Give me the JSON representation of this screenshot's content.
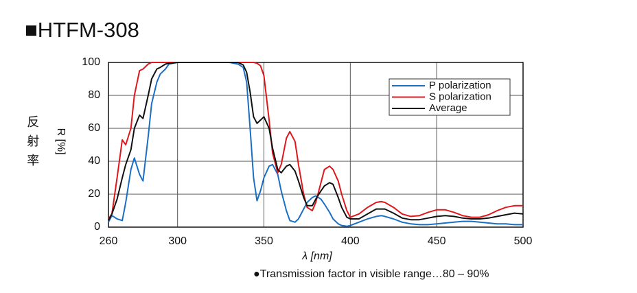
{
  "chart_data": {
    "type": "line",
    "title": "■HTFM-308",
    "ylabel_side": "反射率",
    "ylabel": "R [%]",
    "xlabel": "λ [nm]",
    "annotation": "●Transmission factor in visible range…80 – 90%",
    "x": [
      260,
      262,
      265,
      268,
      270,
      273,
      275,
      278,
      280,
      283,
      285,
      288,
      290,
      293,
      295,
      300,
      310,
      320,
      330,
      335,
      338,
      340,
      342,
      344,
      346,
      348,
      350,
      353,
      355,
      358,
      360,
      363,
      365,
      368,
      370,
      373,
      375,
      378,
      380,
      383,
      385,
      388,
      390,
      393,
      395,
      398,
      400,
      405,
      410,
      415,
      418,
      420,
      425,
      430,
      435,
      440,
      445,
      450,
      455,
      460,
      465,
      470,
      475,
      480,
      485,
      490,
      495,
      500
    ],
    "series": [
      {
        "name": "P polarization",
        "color": "#1a6fc4",
        "values": [
          3,
          7,
          5,
          4,
          15,
          35,
          42,
          32,
          28,
          55,
          75,
          88,
          93,
          96,
          99,
          100,
          100,
          100,
          100,
          99,
          97,
          88,
          60,
          30,
          16,
          22,
          30,
          37,
          38,
          32,
          22,
          10,
          4,
          3,
          5,
          11,
          15,
          18,
          19,
          17,
          14,
          9,
          5,
          2,
          1,
          0.5,
          1,
          3,
          5,
          6.5,
          7,
          6.5,
          5,
          3,
          2,
          1.5,
          1.5,
          2,
          2.5,
          3,
          3.5,
          3.5,
          3,
          2.5,
          2,
          2,
          1.5,
          1.5
        ]
      },
      {
        "name": "S polarization",
        "color": "#e0161b",
        "values": [
          5,
          8,
          30,
          53,
          50,
          60,
          80,
          95,
          96,
          99,
          100,
          100,
          100,
          100,
          100,
          100,
          100,
          100,
          100,
          100,
          100,
          100,
          100,
          100,
          99.5,
          98,
          92,
          65,
          45,
          33,
          38,
          54,
          58,
          52,
          38,
          20,
          12,
          10,
          15,
          27,
          35,
          37,
          35,
          28,
          20,
          10,
          6,
          8,
          12,
          15,
          15.5,
          15,
          12,
          8,
          6.5,
          7,
          9,
          10.5,
          10.5,
          9,
          7,
          6,
          6,
          7.5,
          10,
          12,
          13,
          13
        ]
      },
      {
        "name": "Average",
        "color": "#111111",
        "values": [
          4,
          8,
          17,
          30,
          38,
          47,
          60,
          68,
          66,
          80,
          90,
          96,
          97,
          99,
          99.5,
          100,
          100,
          100,
          100,
          100,
          98.5,
          94,
          82,
          67,
          63,
          65,
          67,
          60,
          48,
          35,
          33,
          37,
          38,
          34,
          28,
          18,
          13,
          13,
          17,
          22,
          25,
          27,
          26,
          18,
          12,
          6,
          5,
          5,
          8,
          11,
          11,
          11,
          8.5,
          5.5,
          4.5,
          4.5,
          5.5,
          6.5,
          7,
          6.5,
          5.5,
          5,
          5,
          5.5,
          6.5,
          7.5,
          8.5,
          8
        ]
      }
    ],
    "xlim": [
      260,
      500
    ],
    "xticks": [
      260,
      300,
      350,
      400,
      450,
      500
    ],
    "ylim": [
      0,
      100
    ],
    "yticks": [
      0,
      20,
      40,
      60,
      80,
      100
    ],
    "grid": true,
    "legend": "upper right"
  }
}
